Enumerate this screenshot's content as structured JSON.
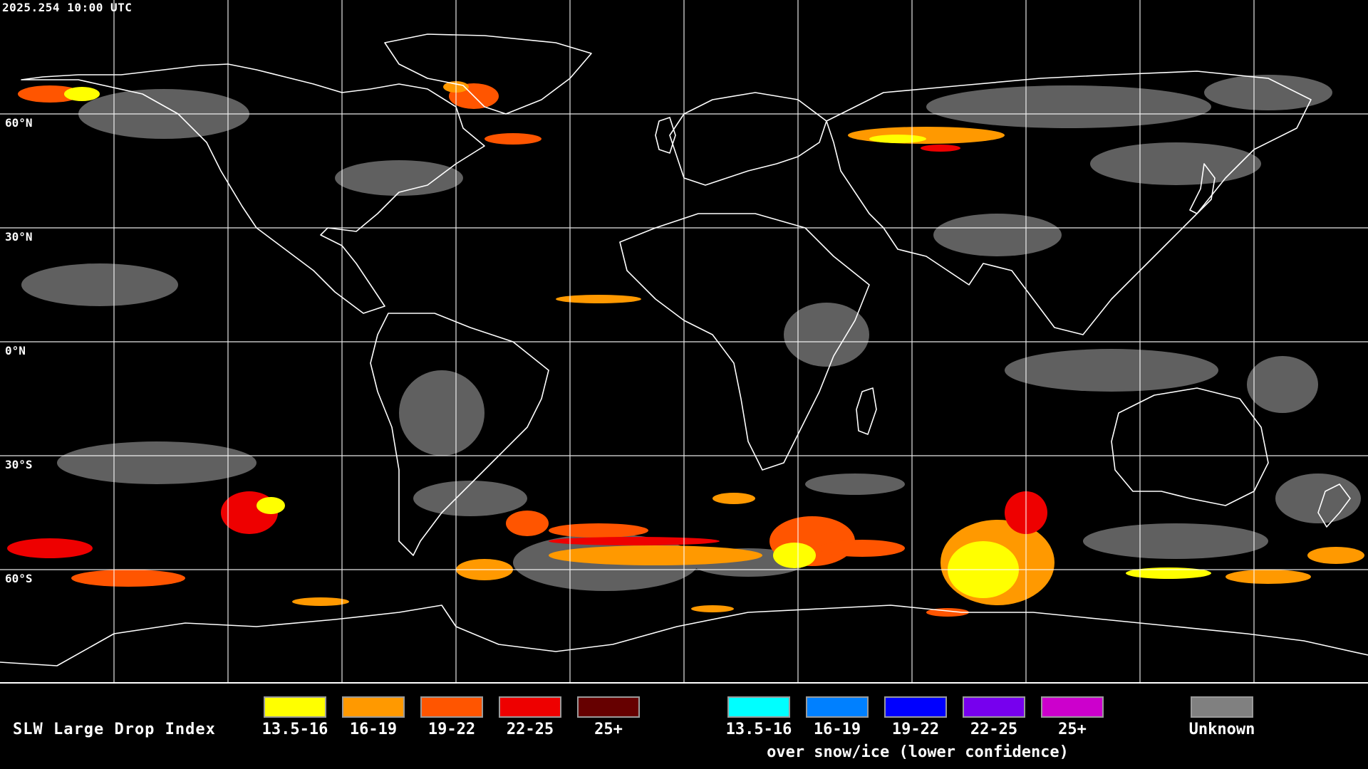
{
  "header": {
    "timestamp": "2025.254 10:00 UTC"
  },
  "latitude_labels": [
    "60°N",
    "30°N",
    "0°N",
    "30°S",
    "60°S"
  ],
  "legend": {
    "title": "SLW Large Drop Index",
    "liquid_classes": [
      {
        "label": "13.5-16",
        "color": "#ffff00"
      },
      {
        "label": "16-19",
        "color": "#ff9900"
      },
      {
        "label": "19-22",
        "color": "#ff5500"
      },
      {
        "label": "22-25",
        "color": "#ee0000"
      },
      {
        "label": "25+",
        "color": "#660000"
      }
    ],
    "snow_ice_classes": [
      {
        "label": "13.5-16",
        "color": "#00ffff"
      },
      {
        "label": "16-19",
        "color": "#0080ff"
      },
      {
        "label": "19-22",
        "color": "#0000ff"
      },
      {
        "label": "22-25",
        "color": "#7700ee"
      },
      {
        "label": "25+",
        "color": "#cc00cc"
      }
    ],
    "snow_ice_caption": "over snow/ice (lower confidence)",
    "unknown": {
      "label": "Unknown",
      "color": "#808080"
    }
  }
}
